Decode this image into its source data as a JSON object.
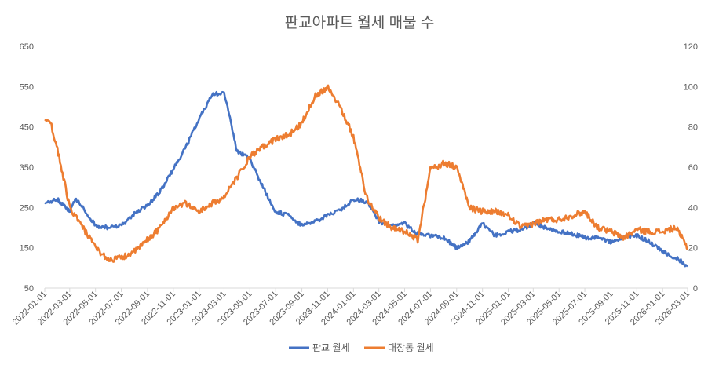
{
  "chart_data": {
    "type": "line",
    "title": "판교아파트 월세 매물 수",
    "xlabel": "",
    "ylabel": "",
    "y2label": "",
    "x_range": [
      "2022-01-01",
      "2026-03-01"
    ],
    "x_ticks": [
      "2022-01-01",
      "2022-03-01",
      "2022-05-01",
      "2022-07-01",
      "2022-09-01",
      "2022-11-01",
      "2023-01-01",
      "2023-03-01",
      "2023-05-01",
      "2023-07-01",
      "2023-09-01",
      "2023-11-01",
      "2024-01-01",
      "2024-03-01",
      "2024-05-01",
      "2024-07-01",
      "2024-09-01",
      "2024-11-01",
      "2025-01-01",
      "2025-03-01",
      "2025-05-01",
      "2025-07-01",
      "2025-09-01",
      "2025-11-01",
      "2026-01-01",
      "2026-03-01"
    ],
    "y_left": {
      "ylim": [
        50,
        650
      ],
      "ticks": [
        50,
        150,
        250,
        350,
        450,
        550,
        650
      ]
    },
    "y_right": {
      "ylim": [
        0,
        120
      ],
      "ticks": [
        0,
        20,
        40,
        60,
        80,
        100,
        120
      ]
    },
    "grid": false,
    "legend": "bottom",
    "series": [
      {
        "name": "판교 월세",
        "axis": "left",
        "color": "#4472C4",
        "x": [
          "2022-01-01",
          "2022-02-01",
          "2022-03-01",
          "2022-03-15",
          "2022-04-01",
          "2022-05-01",
          "2022-06-01",
          "2022-07-01",
          "2022-08-01",
          "2022-09-01",
          "2022-10-01",
          "2022-11-01",
          "2022-12-01",
          "2023-01-01",
          "2023-02-01",
          "2023-03-01",
          "2023-04-01",
          "2023-05-01",
          "2023-06-01",
          "2023-07-01",
          "2023-08-01",
          "2023-09-01",
          "2023-10-01",
          "2023-11-01",
          "2023-12-01",
          "2024-01-01",
          "2024-02-01",
          "2024-03-01",
          "2024-04-01",
          "2024-05-01",
          "2024-06-01",
          "2024-07-01",
          "2024-08-01",
          "2024-09-01",
          "2024-10-01",
          "2024-11-01",
          "2024-12-01",
          "2025-01-01",
          "2025-02-01",
          "2025-03-01",
          "2025-04-01",
          "2025-05-01",
          "2025-06-01",
          "2025-07-01",
          "2025-08-01",
          "2025-09-01",
          "2025-10-01",
          "2025-11-01",
          "2025-12-01",
          "2026-01-01",
          "2026-02-01",
          "2026-03-01"
        ],
        "values": [
          260,
          270,
          240,
          270,
          250,
          205,
          200,
          205,
          235,
          255,
          290,
          345,
          400,
          470,
          530,
          535,
          390,
          370,
          300,
          240,
          230,
          205,
          215,
          230,
          245,
          270,
          265,
          215,
          205,
          210,
          185,
          180,
          175,
          150,
          165,
          210,
          180,
          190,
          195,
          210,
          200,
          190,
          185,
          175,
          175,
          165,
          175,
          180,
          165,
          140,
          125,
          105
        ]
      },
      {
        "name": "대장동 월세",
        "axis": "right",
        "color": "#ED7D31",
        "x": [
          "2022-01-01",
          "2022-01-15",
          "2022-02-01",
          "2022-03-01",
          "2022-04-01",
          "2022-05-01",
          "2022-06-01",
          "2022-07-01",
          "2022-08-01",
          "2022-09-01",
          "2022-10-01",
          "2022-11-01",
          "2022-12-01",
          "2023-01-01",
          "2023-02-01",
          "2023-03-01",
          "2023-04-01",
          "2023-05-01",
          "2023-06-01",
          "2023-07-01",
          "2023-08-01",
          "2023-09-01",
          "2023-10-01",
          "2023-11-01",
          "2023-12-01",
          "2024-01-01",
          "2024-02-01",
          "2024-03-01",
          "2024-04-01",
          "2024-05-01",
          "2024-06-01",
          "2024-07-01",
          "2024-08-01",
          "2024-09-01",
          "2024-10-01",
          "2024-11-01",
          "2024-12-01",
          "2025-01-01",
          "2025-02-01",
          "2025-03-01",
          "2025-04-01",
          "2025-05-01",
          "2025-06-01",
          "2025-07-01",
          "2025-08-01",
          "2025-09-01",
          "2025-10-01",
          "2025-11-01",
          "2025-12-01",
          "2026-01-01",
          "2026-02-01",
          "2026-03-01"
        ],
        "values": [
          85,
          82,
          68,
          40,
          30,
          20,
          14,
          15,
          18,
          24,
          30,
          40,
          42,
          38,
          42,
          45,
          55,
          65,
          70,
          74,
          76,
          82,
          95,
          100,
          90,
          75,
          45,
          35,
          30,
          28,
          24,
          59,
          62,
          60,
          40,
          38,
          38,
          36,
          30,
          32,
          34,
          34,
          36,
          38,
          30,
          28,
          25,
          29,
          28,
          28,
          30,
          20
        ]
      }
    ]
  }
}
